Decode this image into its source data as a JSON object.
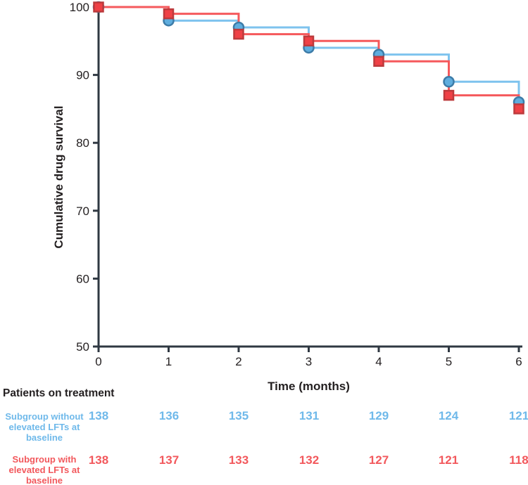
{
  "chart_data": {
    "type": "line",
    "subtype": "kaplan-meier-step",
    "title": "",
    "xlabel": "Time (months)",
    "ylabel": "Cumulative drug survival",
    "xlim": [
      0,
      6
    ],
    "ylim": [
      50,
      100
    ],
    "xticks": [
      0,
      1,
      2,
      3,
      4,
      5,
      6
    ],
    "yticks": [
      50,
      60,
      70,
      80,
      90,
      100
    ],
    "grid": false,
    "legend_position": "none",
    "axis_color": "#2f3842",
    "tick_label_color": "#231f20",
    "series": [
      {
        "name": "Subgroup without elevated LFTs at baseline",
        "marker": "circle",
        "x": [
          0,
          1,
          2,
          3,
          4,
          5,
          6
        ],
        "values": [
          100,
          98,
          97,
          94,
          93,
          89,
          86
        ],
        "line_color": "#7ec3ee",
        "marker_fill": "#5fadde",
        "marker_stroke": "#3d7ca8"
      },
      {
        "name": "Subgroup with elevated LFTs at baseline",
        "marker": "square",
        "x": [
          0,
          1,
          2,
          3,
          4,
          5,
          6
        ],
        "values": [
          100,
          99,
          96,
          95,
          92,
          87,
          85
        ],
        "line_color": "#f5595c",
        "marker_fill": "#ef4146",
        "marker_stroke": "#bc3a3c"
      }
    ]
  },
  "risk_table": {
    "title": "Patients on treatment",
    "rows": [
      {
        "label_lines": [
          "Subgroup without",
          "elevated LFTs at",
          "baseline"
        ],
        "color": "#6fb9ea",
        "counts": [
          138,
          136,
          135,
          131,
          129,
          124,
          121
        ]
      },
      {
        "label_lines": [
          "Subgroup with",
          "elevated LFTs at",
          "baseline"
        ],
        "color": "#f2585c",
        "counts": [
          138,
          137,
          133,
          132,
          127,
          121,
          118
        ]
      }
    ]
  }
}
